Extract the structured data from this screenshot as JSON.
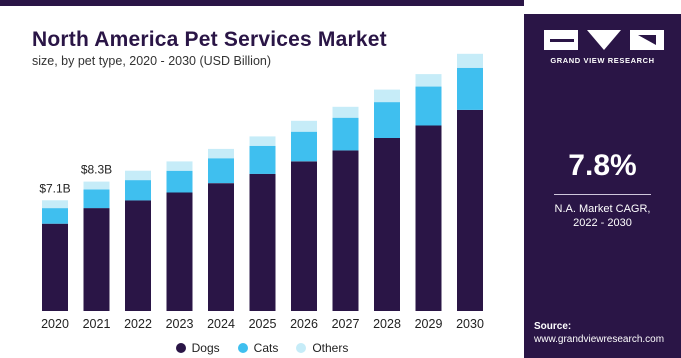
{
  "header": {
    "title": "North America Pet Services Market",
    "subtitle": "size, by pet type, 2020 - 2030 (USD Billion)"
  },
  "sidebar": {
    "brand": "GRAND VIEW RESEARCH",
    "cagr_value": "7.8%",
    "cagr_label_line1": "N.A. Market CAGR,",
    "cagr_label_line2": "2022 - 2030",
    "source_label": "Source:",
    "source_url": "www.grandviewresearch.com"
  },
  "colors": {
    "dogs": "#2a1546",
    "cats": "#3fbfef",
    "others": "#c6ecf8",
    "panel": "#2a1546"
  },
  "chart_data": {
    "type": "bar",
    "stacked": true,
    "categories": [
      "2020",
      "2021",
      "2022",
      "2023",
      "2024",
      "2025",
      "2026",
      "2027",
      "2028",
      "2029",
      "2030"
    ],
    "series": [
      {
        "name": "Dogs",
        "values": [
          5.6,
          6.6,
          7.1,
          7.6,
          8.2,
          8.8,
          9.6,
          10.3,
          11.1,
          11.9,
          12.9
        ]
      },
      {
        "name": "Cats",
        "values": [
          1.0,
          1.2,
          1.3,
          1.4,
          1.6,
          1.8,
          1.9,
          2.1,
          2.3,
          2.5,
          2.7
        ]
      },
      {
        "name": "Others",
        "values": [
          0.5,
          0.5,
          0.6,
          0.6,
          0.6,
          0.6,
          0.7,
          0.7,
          0.8,
          0.8,
          0.9
        ]
      }
    ],
    "data_labels": [
      {
        "category": "2020",
        "text": "$7.1B"
      },
      {
        "category": "2021",
        "text": "$8.3B"
      }
    ],
    "ylim": [
      0,
      17
    ],
    "grid": false,
    "legend": "bottom-center"
  }
}
